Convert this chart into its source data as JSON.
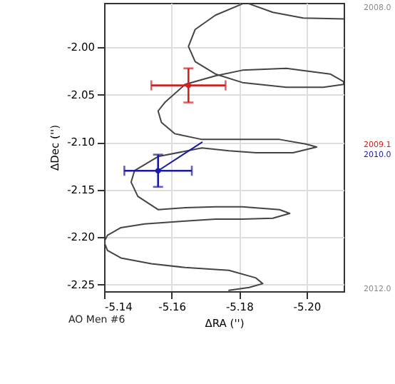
{
  "chart_data": {
    "type": "line",
    "xlabel": "ΔRA ('')",
    "ylabel": "ΔDec ('')",
    "xlim": [
      -5.14,
      -5.211
    ],
    "ylim": [
      -2.257,
      -1.953
    ],
    "xticks": [
      -5.14,
      -5.16,
      -5.18,
      {
        "value": -5.2,
        "label": "-5.20"
      }
    ],
    "yticks": [
      {
        "value": -2.0,
        "label": "-2.00"
      },
      {
        "value": -2.05,
        "label": "-2.05"
      },
      {
        "value": -2.1,
        "label": "-2.10"
      },
      {
        "value": -2.15,
        "label": "-2.15"
      },
      {
        "value": -2.2,
        "label": "-2.20"
      },
      {
        "value": -2.25,
        "label": "-2.25"
      }
    ],
    "grid": true,
    "annotations": [
      "2008.0",
      "2009.1",
      "2010.0",
      "2012.0",
      "AO Men #6"
    ],
    "series": [
      {
        "type": "line",
        "color": "#444444",
        "x": [
          -5.211,
          -5.199,
          -5.19,
          -5.183
        ],
        "values": [
          -1.97,
          -1.969,
          -1.963,
          -1.954
        ]
      },
      {
        "type": "line",
        "color": "#444444",
        "x": [
          -5.181,
          -5.173,
          -5.167,
          -5.165,
          -5.167,
          -5.173,
          -5.181,
          -5.194,
          -5.205,
          -5.211,
          -5.211,
          -5.207,
          -5.194,
          -5.181,
          -5.173,
          -5.164,
          -5.158,
          -5.156,
          -5.157,
          -5.161,
          -5.169,
          -5.181,
          -5.192,
          -5.2,
          -5.203,
          -5.196,
          -5.185,
          -5.177,
          -5.169,
          -5.156,
          -5.149,
          -5.148,
          -5.15,
          -5.156,
          -5.164,
          -5.173,
          -5.181,
          -5.192,
          -5.195,
          -5.19,
          -5.181,
          -5.173,
          -5.164,
          -5.152,
          -5.145,
          -5.141,
          -5.14,
          -5.141,
          -5.145,
          -5.154,
          -5.164,
          -5.177,
          -5.185,
          -5.187,
          -5.183,
          -5.177
        ],
        "values": [
          -1.954,
          -1.966,
          -1.981,
          -1.999,
          -2.015,
          -2.028,
          -2.037,
          -2.042,
          -2.042,
          -2.039,
          -2.036,
          -2.028,
          -2.022,
          -2.024,
          -2.03,
          -2.039,
          -2.058,
          -2.067,
          -2.079,
          -2.091,
          -2.097,
          -2.097,
          -2.097,
          -2.102,
          -2.105,
          -2.111,
          -2.111,
          -2.109,
          -2.106,
          -2.115,
          -2.13,
          -2.142,
          -2.157,
          -2.171,
          -2.169,
          -2.168,
          -2.168,
          -2.171,
          -2.175,
          -2.18,
          -2.181,
          -2.181,
          -2.183,
          -2.186,
          -2.19,
          -2.198,
          -2.205,
          -2.214,
          -2.222,
          -2.228,
          -2.232,
          -2.235,
          -2.243,
          -2.249,
          -2.253,
          -2.256
        ]
      },
      {
        "type": "line",
        "color": "#1a1aa0",
        "x": [
          -5.156,
          -5.169
        ],
        "values": [
          -2.13,
          -2.1
        ]
      },
      {
        "type": "scatter",
        "color": "#cc2222",
        "x": [
          -5.165
        ],
        "values": [
          -2.04
        ],
        "errors": [
          0.018
        ],
        "xerrors": [
          0.011
        ]
      },
      {
        "type": "scatter",
        "color": "#1a1aa0",
        "x": [
          -5.156
        ],
        "values": [
          -2.13
        ],
        "errors": [
          0.017
        ],
        "xerrors": [
          0.01
        ]
      }
    ]
  }
}
